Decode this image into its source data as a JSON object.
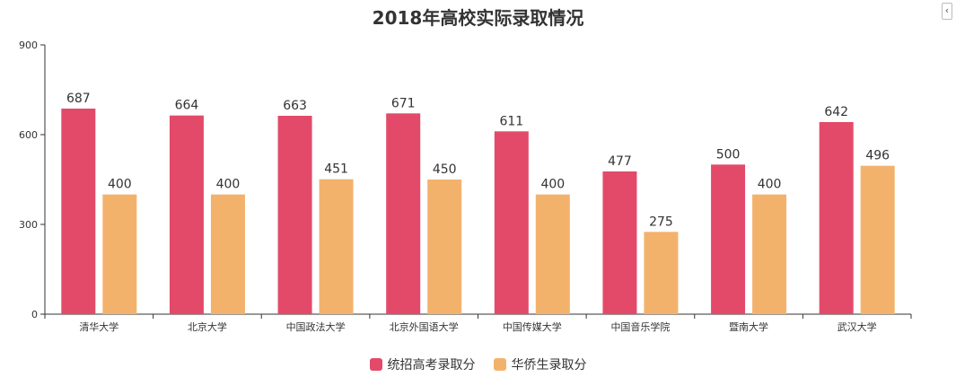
{
  "title": "2018年高校实际录取情况",
  "collapse_icon_glyph": "‹",
  "chart_data": {
    "type": "bar",
    "title": "2018年高校实际录取情况",
    "xlabel": "",
    "ylabel": "",
    "ylim": [
      0,
      900
    ],
    "yticks": [
      0,
      300,
      600,
      900
    ],
    "grid": false,
    "legend_position": "bottom",
    "categories": [
      "清华大学",
      "北京大学",
      "中国政法大学",
      "北京外国语大学",
      "中国传媒大学",
      "中国音乐学院",
      "暨南大学",
      "武汉大学"
    ],
    "series": [
      {
        "name": "统招高考录取分",
        "color": "#e34a69",
        "values": [
          687,
          664,
          663,
          671,
          611,
          477,
          500,
          642
        ]
      },
      {
        "name": "华侨生录取分",
        "color": "#f3b26c",
        "values": [
          400,
          400,
          451,
          450,
          400,
          275,
          400,
          496
        ]
      }
    ]
  }
}
